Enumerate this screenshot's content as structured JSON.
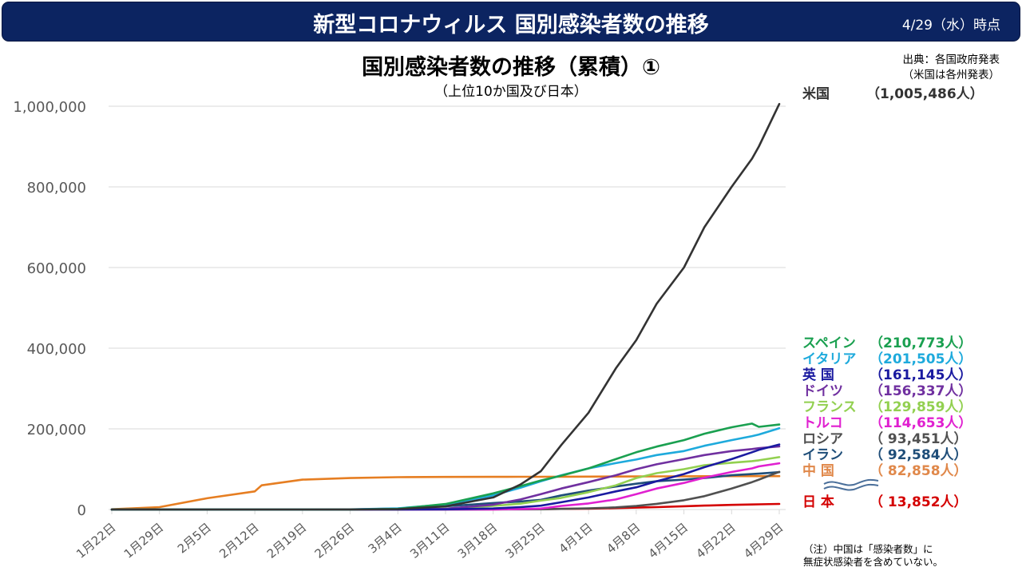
{
  "header": {
    "title": "新型コロナウィルス 国別感染者数の推移",
    "date": "4/29（水）時点"
  },
  "source": {
    "line1": "出典：各国政府発表",
    "line2": "（米国は各州発表）"
  },
  "note": {
    "line1": "（注）中国は「感染者数」に",
    "line2": "無症状感染者を含めていない。"
  },
  "chart_data": {
    "type": "line",
    "title": "国別感染者数の推移（累積）①",
    "subtitle": "（上位10か国及び日本）",
    "xlabel": "",
    "ylabel": "",
    "ylim": [
      0,
      1000000
    ],
    "y_ticks": [
      0,
      200000,
      400000,
      600000,
      800000,
      1000000
    ],
    "y_tick_labels": [
      "0",
      "200,000",
      "400,000",
      "600,000",
      "800,000",
      "1,000,000"
    ],
    "x_start": "1月22日",
    "x_days": 98,
    "x_ticks": [
      0,
      7,
      14,
      21,
      28,
      35,
      42,
      49,
      56,
      63,
      70,
      77,
      84,
      91,
      98
    ],
    "x_tick_labels": [
      "1月22日",
      "1月29日",
      "2月5日",
      "2月12日",
      "2月19日",
      "2月26日",
      "3月4日",
      "3月11日",
      "3月18日",
      "3月25日",
      "4月1日",
      "4月8日",
      "4月15日",
      "4月22日",
      "4月29日"
    ],
    "grid": true,
    "legend": "right",
    "x_point_days": [
      0,
      7,
      14,
      21,
      22,
      28,
      35,
      42,
      49,
      56,
      60,
      63,
      66,
      70,
      74,
      77,
      80,
      84,
      87,
      91,
      94,
      95,
      98
    ],
    "series": [
      {
        "name": "米国",
        "label": "米国",
        "value_label": "（1,005,486人）",
        "final": 1005486,
        "color": "#333333",
        "values": [
          0,
          5,
          12,
          14,
          14,
          15,
          100,
          1000,
          8000,
          30000,
          62000,
          95000,
          160000,
          240000,
          350000,
          420000,
          510000,
          600000,
          700000,
          800000,
          870000,
          900000,
          1005486
        ]
      },
      {
        "name": "スペイン",
        "label": "スペイン",
        "value_label": "（210,773人）",
        "final": 210773,
        "color": "#1aa050",
        "values": [
          0,
          0,
          1,
          2,
          2,
          2,
          15,
          1600,
          13700,
          40000,
          58000,
          72000,
          84000,
          102000,
          125000,
          142000,
          156000,
          172000,
          188000,
          204000,
          213000,
          205000,
          210773
        ]
      },
      {
        "name": "イタリア",
        "label": "イタリア",
        "value_label": "（201,505人）",
        "final": 201505,
        "color": "#1eaadc",
        "values": [
          0,
          0,
          2,
          3,
          3,
          3,
          450,
          3000,
          12500,
          35000,
          54000,
          70000,
          85000,
          102000,
          115000,
          124000,
          135000,
          145000,
          158000,
          172000,
          182000,
          186000,
          201505
        ]
      },
      {
        "name": "英国",
        "label": "英 国",
        "value_label": "（161,145人）",
        "final": 161145,
        "color": "#1a1aa0",
        "values": [
          0,
          0,
          2,
          8,
          9,
          9,
          13,
          80,
          460,
          2600,
          6000,
          9500,
          18000,
          30000,
          45000,
          55000,
          70000,
          88000,
          105000,
          125000,
          142000,
          148000,
          161145
        ]
      },
      {
        "name": "ドイツ",
        "label": "ドイツ",
        "value_label": "（156,337人）",
        "final": 156337,
        "color": "#7030a0",
        "values": [
          0,
          4,
          12,
          16,
          16,
          16,
          27,
          240,
          1900,
          12000,
          25000,
          38000,
          52000,
          68000,
          85000,
          100000,
          112000,
          125000,
          135000,
          145000,
          150000,
          152000,
          156337
        ]
      },
      {
        "name": "フランス",
        "label": "フランス",
        "value_label": "（129,859人）",
        "final": 129859,
        "color": "#92d050",
        "values": [
          0,
          4,
          6,
          11,
          12,
          12,
          18,
          280,
          2300,
          9000,
          14500,
          22000,
          29000,
          43000,
          60000,
          78000,
          90000,
          100000,
          110000,
          116000,
          120000,
          122000,
          129859
        ]
      },
      {
        "name": "トルコ",
        "label": "トルコ",
        "value_label": "（114,653人）",
        "final": 114653,
        "color": "#e020d0",
        "values": [
          0,
          0,
          0,
          0,
          0,
          0,
          0,
          0,
          5,
          250,
          1200,
          2400,
          9000,
          15000,
          25000,
          38000,
          52000,
          66000,
          79000,
          93000,
          102000,
          107000,
          114653
        ]
      },
      {
        "name": "ロシア",
        "label": "ロシア",
        "value_label": "（ 93,451人）",
        "final": 93451,
        "color": "#505050",
        "values": [
          0,
          0,
          2,
          2,
          2,
          2,
          3,
          5,
          20,
          150,
          450,
          650,
          1500,
          2800,
          5400,
          8700,
          14000,
          23000,
          33000,
          52000,
          68000,
          74000,
          93451
        ]
      },
      {
        "name": "イラン",
        "label": "イラン",
        "value_label": "（ 92,584人）",
        "final": 92584,
        "color": "#1f4e79",
        "values": [
          0,
          0,
          0,
          0,
          0,
          0,
          140,
          2300,
          8000,
          16000,
          20000,
          24000,
          35000,
          47000,
          57000,
          64000,
          70000,
          74000,
          78000,
          85000,
          88000,
          89000,
          92584
        ]
      },
      {
        "name": "中国",
        "label": "中 国",
        "value_label": "（ 82,858人）",
        "final": 82858,
        "color": "#e67e22",
        "values": [
          548,
          6000,
          28000,
          45000,
          60000,
          74000,
          78000,
          80200,
          80800,
          81000,
          81100,
          81200,
          81400,
          81600,
          81800,
          81900,
          82100,
          82300,
          82500,
          82700,
          82800,
          82800,
          82858
        ]
      },
      {
        "name": "日本",
        "label": "日 本",
        "value_label": "（ 13,852人）",
        "final": 13852,
        "color": "#d40000",
        "values": [
          0,
          7,
          20,
          33,
          33,
          85,
          190,
          290,
          570,
          840,
          1000,
          1200,
          1600,
          2200,
          3500,
          4700,
          6000,
          8100,
          9800,
          11500,
          12400,
          12900,
          13852
        ]
      }
    ]
  }
}
